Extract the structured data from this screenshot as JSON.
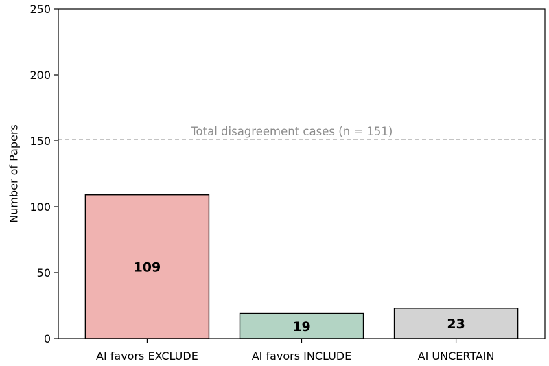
{
  "chart_data": {
    "type": "bar",
    "title": "",
    "xlabel": "",
    "ylabel": "Number of Papers",
    "ylim": [
      0,
      250
    ],
    "yticks": [
      0,
      50,
      100,
      150,
      200,
      250
    ],
    "categories": [
      "AI favors EXCLUDE",
      "AI favors INCLUDE",
      "AI UNCERTAIN"
    ],
    "values": [
      109,
      19,
      23
    ],
    "bar_colors": [
      "#f0b3b1",
      "#b3d4c4",
      "#d3d3d3"
    ],
    "bar_edge_color": "#000000",
    "value_labels": [
      "109",
      "19",
      "23"
    ],
    "grid": false,
    "reference_line": {
      "value": 151,
      "label": "Total disagreement cases (n = 151)",
      "style": "dashed",
      "color": "#b0b0b0"
    }
  }
}
